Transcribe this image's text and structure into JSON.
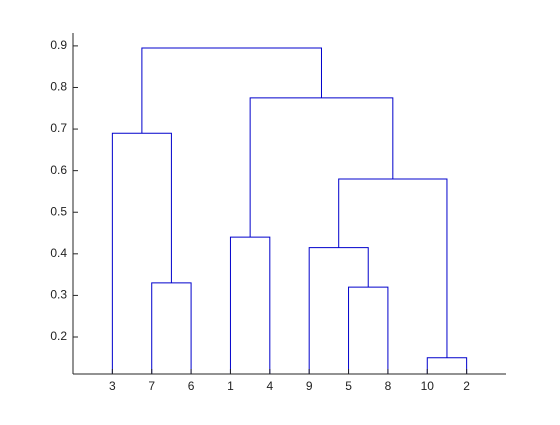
{
  "chart_data": {
    "type": "dendrogram",
    "categories": [
      3,
      7,
      6,
      1,
      4,
      9,
      5,
      8,
      10,
      2
    ],
    "links": [
      [
        10,
        2,
        0.15
      ],
      [
        5,
        8,
        0.32
      ],
      [
        7,
        6,
        0.33
      ],
      [
        9,
        12,
        0.415
      ],
      [
        1,
        4,
        0.44
      ],
      [
        14,
        11,
        0.58
      ],
      [
        3,
        13,
        0.69
      ],
      [
        15,
        16,
        0.775
      ],
      [
        17,
        18,
        0.895
      ]
    ],
    "color": "#0000cc",
    "xlim": [
      0,
      11
    ],
    "ylim": [
      0.111,
      0.931
    ],
    "yticks": [
      0.2,
      0.3,
      0.4,
      0.5,
      0.6,
      0.7,
      0.8,
      0.9
    ]
  }
}
